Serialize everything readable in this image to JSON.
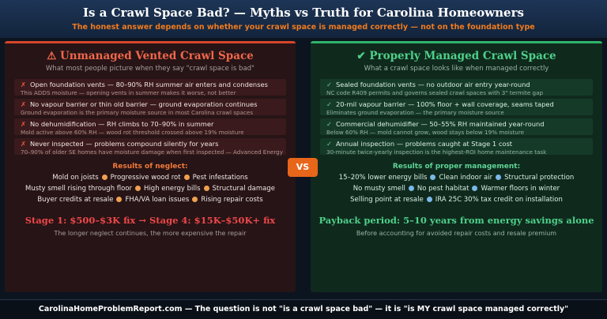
{
  "header": {
    "title": "Is a Crawl Space Bad? — Myths vs Truth for Carolina Homeowners",
    "subtitle": "The honest answer depends on whether your crawl space is managed correctly — not on the foundation type"
  },
  "vs": "VS",
  "panels": [
    {
      "title": "⚠ Unmanaged Vented Crawl Space",
      "subtitle": "What most people picture when they say \"crawl space is bad\"",
      "items": [
        {
          "mark": "✗",
          "text": "Open foundation vents — 80–90% RH summer air enters and condenses",
          "note": "This ADDS moisture — opening vents in summer makes it worse, not better"
        },
        {
          "mark": "✗",
          "text": "No vapour barrier or thin old barrier — ground evaporation continues",
          "note": "Ground evaporation is the primary moisture source in most Carolina crawl spaces"
        },
        {
          "mark": "✗",
          "text": "No dehumidification — RH climbs to 70–90% in summer",
          "note": "Mold active above 60% RH — wood rot threshold crossed above 19% moisture"
        },
        {
          "mark": "✗",
          "text": "Never inspected — problems compound silently for years",
          "note": "70–90% of older SE homes have moisture damage when first inspected — Advanced Energy"
        }
      ],
      "results_title": "Results of neglect:",
      "results": [
        [
          "Mold on joists",
          "Progressive wood rot",
          "Pest infestations"
        ],
        [
          "Musty smell rising through floor",
          "High energy bills",
          "Structural damage"
        ],
        [
          "Buyer credits at resale",
          "FHA/VA loan issues",
          "Rising repair costs"
        ]
      ],
      "highlight": "Stage 1: $500–$3K fix → Stage 4: $15K–$50K+ fix",
      "caption": "The longer neglect continues, the more expensive the repair"
    },
    {
      "title": "✔ Properly Managed Crawl Space",
      "subtitle": "What a crawl space looks like when managed correctly",
      "items": [
        {
          "mark": "✓",
          "text": "Sealed foundation vents — no outdoor air entry year-round",
          "note": "NC code R409 permits and governs sealed crawl spaces with 3\" termite gap"
        },
        {
          "mark": "✓",
          "text": "20-mil vapour barrier — 100% floor + wall coverage, seams taped",
          "note": "Eliminates ground evaporation — the primary moisture source"
        },
        {
          "mark": "✓",
          "text": "Commercial dehumidifier — 50–55% RH maintained year-round",
          "note": "Below 60% RH — mold cannot grow, wood stays below 19% moisture"
        },
        {
          "mark": "✓",
          "text": "Annual inspection — problems caught at Stage 1 cost",
          "note": "30-minute twice-yearly inspection is the highest-ROI home maintenance task"
        }
      ],
      "results_title": "Results of proper management:",
      "results": [
        [
          "15–20% lower energy bills",
          "Clean indoor air",
          "Structural protection"
        ],
        [
          "No musty smell",
          "No pest habitat",
          "Warmer floors in winter"
        ],
        [
          "Selling point at resale",
          "IRA 25C 30% tax credit on installation"
        ]
      ],
      "highlight": "Payback period: 5–10 years from energy savings alone",
      "caption": "Before accounting for avoided repair costs and resale premium"
    }
  ],
  "footer": "CarolinaHomeProblemReport.com — The question is not \"is a crawl space bad\" — it is \"is MY crawl space managed correctly\""
}
